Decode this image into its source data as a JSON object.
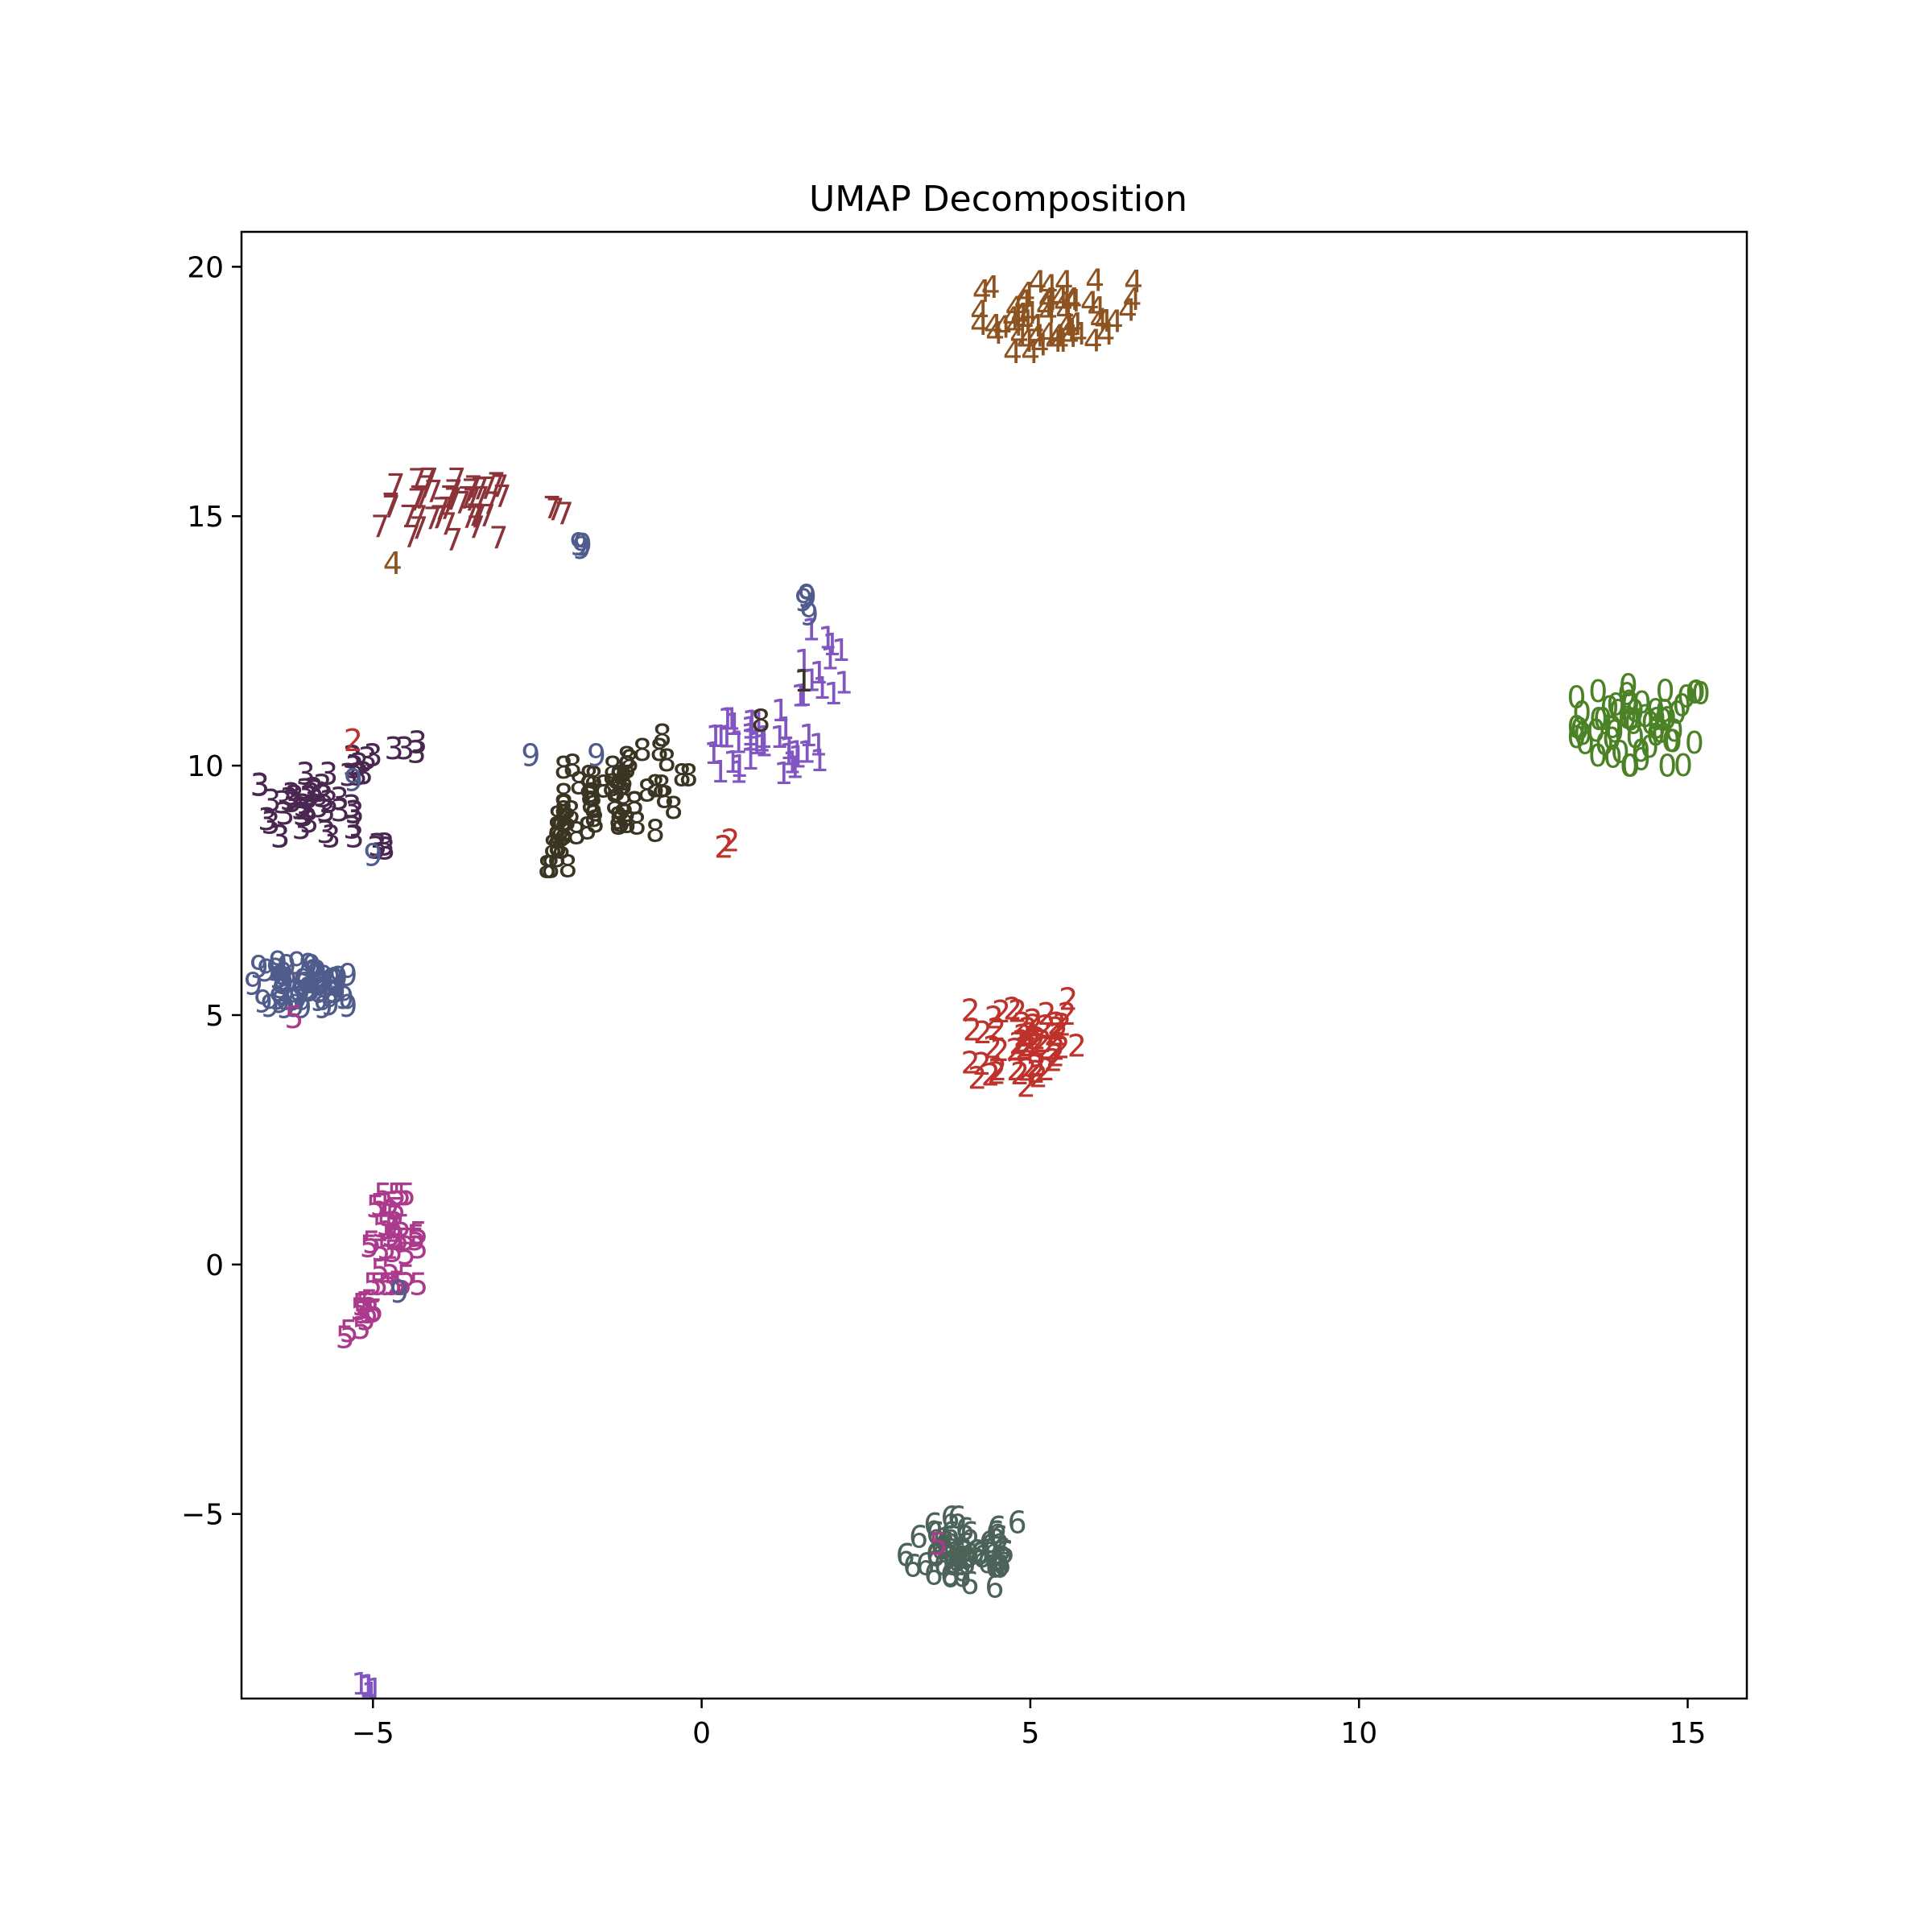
{
  "chart_data": {
    "type": "scatter",
    "title": "UMAP Decomposition",
    "xlabel": "",
    "ylabel": "",
    "xlim": [
      -7.0,
      15.9
    ],
    "ylim": [
      -8.7,
      20.7
    ],
    "xticks": [
      -5,
      0,
      5,
      10,
      15
    ],
    "yticks": [
      -5,
      0,
      5,
      10,
      15,
      20
    ],
    "xtick_labels": [
      "−5",
      "0",
      "5",
      "10",
      "15"
    ],
    "ytick_labels": [
      "−5",
      "0",
      "5",
      "10",
      "15",
      "20"
    ],
    "grid": false,
    "legend": "none",
    "marker_style": "digit-labels",
    "clusters": [
      {
        "label": "0",
        "color": "#4b8226",
        "center": [
          14.3,
          10.8
        ],
        "spread": [
          0.55,
          0.45
        ],
        "n": 60
      },
      {
        "label": "1",
        "color": "#8155c2",
        "center": [
          0.8,
          10.3
        ],
        "spread": [
          0.55,
          0.35
        ],
        "n": 35
      },
      {
        "label": "1",
        "color": "#8155c2",
        "center": [
          1.9,
          12.0
        ],
        "spread": [
          0.2,
          0.4
        ],
        "n": 12
      },
      {
        "label": "1",
        "color": "#8155c2",
        "center": [
          -5.0,
          -8.5
        ],
        "spread": [
          0.12,
          0.08
        ],
        "n": 5
      },
      {
        "label": "2",
        "color": "#bf312b",
        "center": [
          4.9,
          4.5
        ],
        "spread": [
          0.45,
          0.55
        ],
        "n": 55
      },
      {
        "label": "2",
        "color": "#bf312b",
        "center": [
          0.35,
          8.4
        ],
        "spread": [
          0.06,
          0.06
        ],
        "n": 3
      },
      {
        "label": "3",
        "color": "#4a2751",
        "center": [
          -6.0,
          9.2
        ],
        "spread": [
          0.4,
          0.35
        ],
        "n": 40
      },
      {
        "label": "3",
        "color": "#4a2751",
        "center": [
          -5.3,
          10.0
        ],
        "spread": [
          0.2,
          0.2
        ],
        "n": 8
      },
      {
        "label": "3",
        "color": "#4a2751",
        "center": [
          -4.5,
          10.4
        ],
        "spread": [
          0.1,
          0.08
        ],
        "n": 4
      },
      {
        "label": "3",
        "color": "#4a2751",
        "center": [
          -4.95,
          8.35
        ],
        "spread": [
          0.08,
          0.06
        ],
        "n": 4
      },
      {
        "label": "4",
        "color": "#8d5320",
        "center": [
          5.4,
          19.0
        ],
        "spread": [
          0.65,
          0.4
        ],
        "n": 55
      },
      {
        "label": "5",
        "color": "#ac3a8c",
        "center": [
          -4.7,
          0.5
        ],
        "spread": [
          0.22,
          0.5
        ],
        "n": 40
      },
      {
        "label": "5",
        "color": "#ac3a8c",
        "center": [
          -5.1,
          -1.1
        ],
        "spread": [
          0.18,
          0.2
        ],
        "n": 12
      },
      {
        "label": "6",
        "color": "#4c6359",
        "center": [
          4.0,
          -5.8
        ],
        "spread": [
          0.5,
          0.4
        ],
        "n": 60
      },
      {
        "label": "7",
        "color": "#8b3339",
        "center": [
          -3.9,
          15.1
        ],
        "spread": [
          0.55,
          0.35
        ],
        "n": 45
      },
      {
        "label": "7",
        "color": "#8b3339",
        "center": [
          -2.2,
          15.1
        ],
        "spread": [
          0.12,
          0.05
        ],
        "n": 3
      },
      {
        "label": "8",
        "color": "#3a3422",
        "center": [
          -1.2,
          9.5
        ],
        "spread": [
          0.5,
          0.45
        ],
        "n": 50
      },
      {
        "label": "8",
        "color": "#3a3422",
        "center": [
          -2.1,
          8.5
        ],
        "spread": [
          0.15,
          0.3
        ],
        "n": 15
      },
      {
        "label": "9",
        "color": "#4f5c8c",
        "center": [
          -6.1,
          5.6
        ],
        "spread": [
          0.4,
          0.25
        ],
        "n": 55
      },
      {
        "label": "9",
        "color": "#4f5c8c",
        "center": [
          1.6,
          13.3
        ],
        "spread": [
          0.06,
          0.15
        ],
        "n": 4
      },
      {
        "label": "9",
        "color": "#4f5c8c",
        "center": [
          -1.9,
          14.4
        ],
        "spread": [
          0.05,
          0.05
        ],
        "n": 3
      }
    ],
    "outliers": [
      {
        "label": "4",
        "color": "#8d5320",
        "x": -4.7,
        "y": 14.05
      },
      {
        "label": "2",
        "color": "#bf312b",
        "x": -5.3,
        "y": 10.5
      },
      {
        "label": "9",
        "color": "#4f5c8c",
        "x": -5.0,
        "y": 8.2
      },
      {
        "label": "9",
        "color": "#4f5c8c",
        "x": -5.3,
        "y": 9.7
      },
      {
        "label": "3",
        "color": "#4a2751",
        "x": -5.0,
        "y": 10.2
      },
      {
        "label": "3",
        "color": "#4a2751",
        "x": -5.5,
        "y": 9.1
      },
      {
        "label": "8",
        "color": "#3a3422",
        "x": -0.2,
        "y": 9.8
      },
      {
        "label": "8",
        "color": "#3a3422",
        "x": 0.9,
        "y": 10.9
      },
      {
        "label": "8",
        "color": "#3a3422",
        "x": -0.6,
        "y": 10.6
      },
      {
        "label": "1",
        "color": "#8155c2",
        "x": 1.2,
        "y": 11.1
      },
      {
        "label": "1",
        "color": "#8155c2",
        "x": 1.5,
        "y": 11.4
      },
      {
        "label": "1",
        "color": "#3a3422",
        "x": 1.55,
        "y": 11.7
      },
      {
        "label": "9",
        "color": "#4f5c8c",
        "x": -2.6,
        "y": 10.2
      },
      {
        "label": "9",
        "color": "#4f5c8c",
        "x": -1.6,
        "y": 10.2
      },
      {
        "label": "9",
        "color": "#4f5c8c",
        "x": -4.6,
        "y": -0.55
      },
      {
        "label": "5",
        "color": "#ac3a8c",
        "x": -6.2,
        "y": 4.95
      },
      {
        "label": "5",
        "color": "#ac3a8c",
        "x": 3.6,
        "y": -5.6
      }
    ]
  }
}
